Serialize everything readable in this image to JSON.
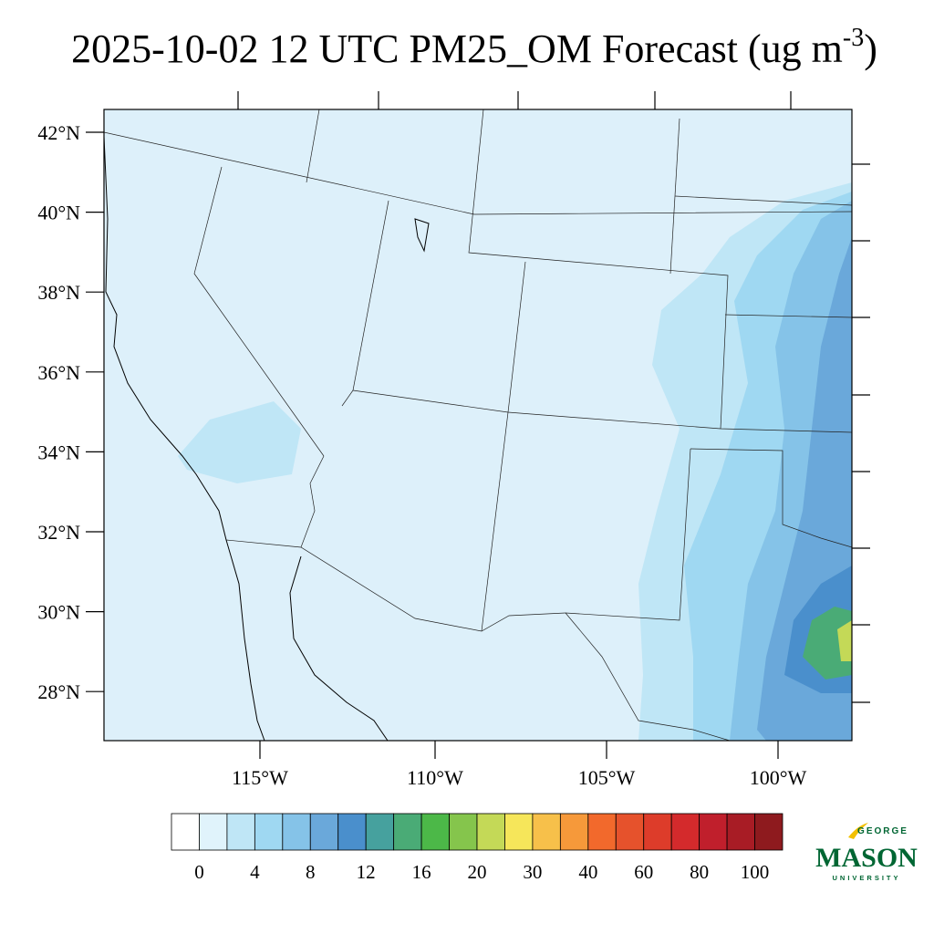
{
  "title": {
    "text": "2025-10-02 12 UTC PM25_OM Forecast (ug m",
    "superscript": "-3",
    "suffix": ")"
  },
  "lat_labels": [
    "42°N",
    "40°N",
    "38°N",
    "36°N",
    "34°N",
    "32°N",
    "30°N",
    "28°N"
  ],
  "lon_labels": [
    "115°W",
    "110°W",
    "105°W",
    "100°W"
  ],
  "colorbar": {
    "colors": [
      "#ffffff",
      "#e0f3fb",
      "#bfe6f6",
      "#9fd8f2",
      "#85c3e8",
      "#6aa8da",
      "#4a8fcc",
      "#46a19e",
      "#4aab76",
      "#4cb848",
      "#85c54c",
      "#c4d957",
      "#f6e65a",
      "#f7c04a",
      "#f6993a",
      "#f2692c",
      "#e6522c",
      "#dd3c2a",
      "#d42a2c",
      "#c01f2c",
      "#a81c25",
      "#8e1a1e"
    ],
    "labels": [
      0,
      4,
      8,
      12,
      16,
      20,
      30,
      40,
      60,
      80,
      100
    ]
  },
  "logo": {
    "top": "GEORGE",
    "main": "MASON",
    "bottom": "UNIVERSITY"
  }
}
